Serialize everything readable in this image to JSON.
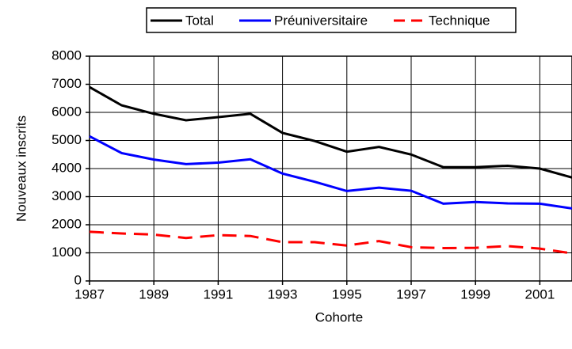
{
  "chart_data": {
    "type": "line",
    "xlabel": "Cohorte",
    "ylabel": "Nouveaux inscrits",
    "x": [
      1987,
      1988,
      1989,
      1990,
      1991,
      1992,
      1993,
      1994,
      1995,
      1996,
      1997,
      1998,
      1999,
      2000,
      2001,
      2002
    ],
    "series": [
      {
        "name": "Total",
        "color": "#000000",
        "dash": false,
        "values": [
          6900,
          6250,
          5950,
          5720,
          5830,
          5950,
          5270,
          4980,
          4600,
          4770,
          4500,
          4050,
          4050,
          4100,
          4000,
          3680
        ]
      },
      {
        "name": "Préuniversitaire",
        "color": "#0000ff",
        "dash": false,
        "values": [
          5150,
          4550,
          4320,
          4160,
          4210,
          4330,
          3820,
          3530,
          3200,
          3320,
          3210,
          2750,
          2810,
          2760,
          2750,
          2580
        ]
      },
      {
        "name": "Technique",
        "color": "#ff0000",
        "dash": true,
        "values": [
          1750,
          1690,
          1650,
          1530,
          1630,
          1600,
          1380,
          1380,
          1260,
          1420,
          1200,
          1170,
          1180,
          1240,
          1150,
          980
        ]
      }
    ],
    "xlim": [
      1987,
      2002
    ],
    "xticks": [
      1987,
      1989,
      1991,
      1993,
      1995,
      1997,
      1999,
      2001
    ],
    "ylim": [
      0,
      8000
    ],
    "yticks": [
      0,
      1000,
      2000,
      3000,
      4000,
      5000,
      6000,
      7000,
      8000
    ],
    "grid": true,
    "legend": "top"
  }
}
